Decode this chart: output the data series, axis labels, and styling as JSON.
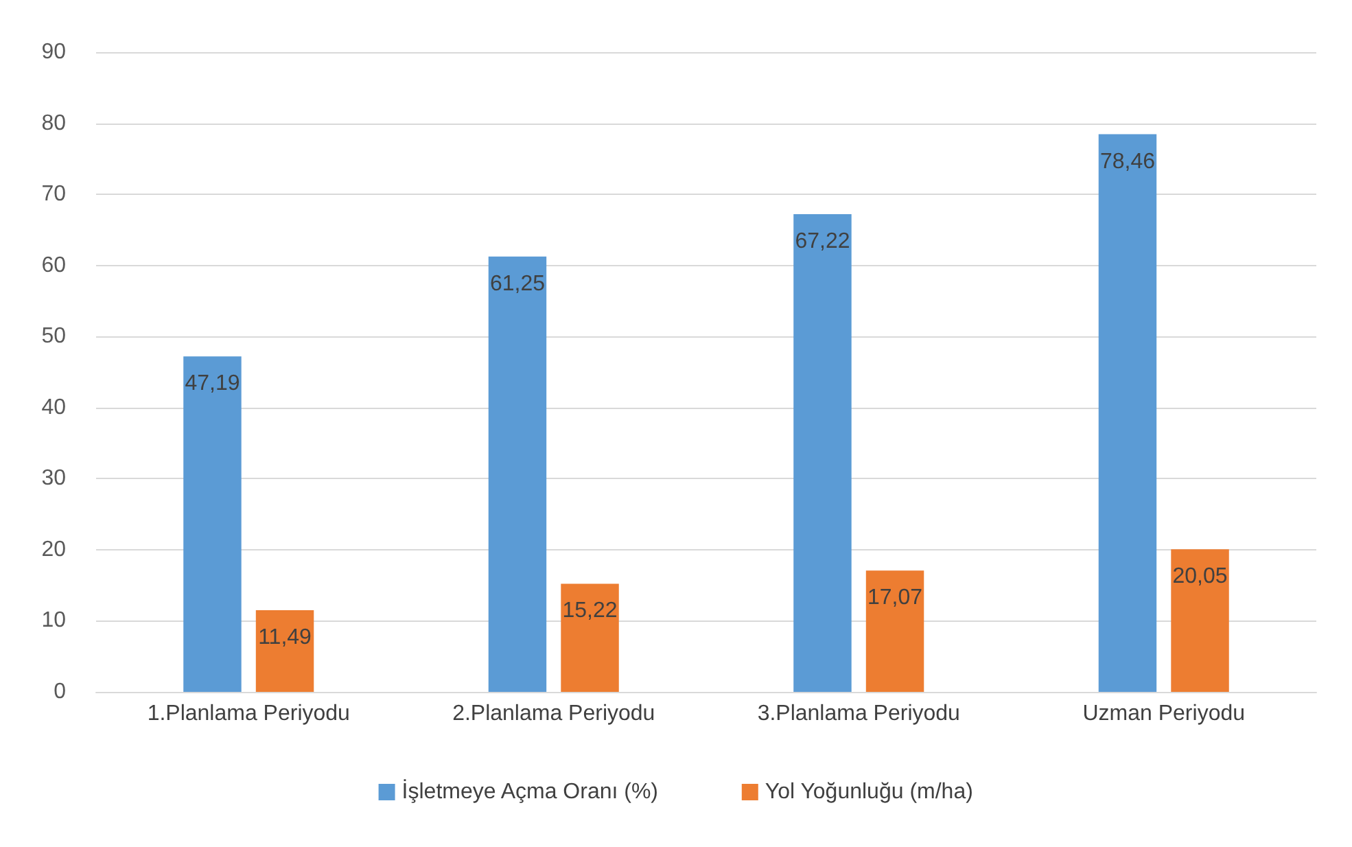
{
  "chart_data": {
    "type": "bar",
    "categories": [
      "1.Planlama Periyodu",
      "2.Planlama Periyodu",
      "3.Planlama Periyodu",
      "Uzman Periyodu"
    ],
    "series": [
      {
        "name": "İşletmeye Açma Oranı (%)",
        "color": "#5b9bd5",
        "values": [
          47.19,
          61.25,
          67.22,
          78.46
        ],
        "value_labels": [
          "47,19",
          "61,25",
          "67,22",
          "78,46"
        ]
      },
      {
        "name": "Yol Yoğunluğu (m/ha)",
        "color": "#ed7d31",
        "values": [
          11.49,
          15.22,
          17.07,
          20.05
        ],
        "value_labels": [
          "11,49",
          "15,22",
          "17,07",
          "20,05"
        ]
      }
    ],
    "ylim": [
      0,
      90
    ],
    "yticks": [
      0,
      10,
      20,
      30,
      40,
      50,
      60,
      70,
      80,
      90
    ],
    "grid": "y",
    "legend": "bottom"
  }
}
